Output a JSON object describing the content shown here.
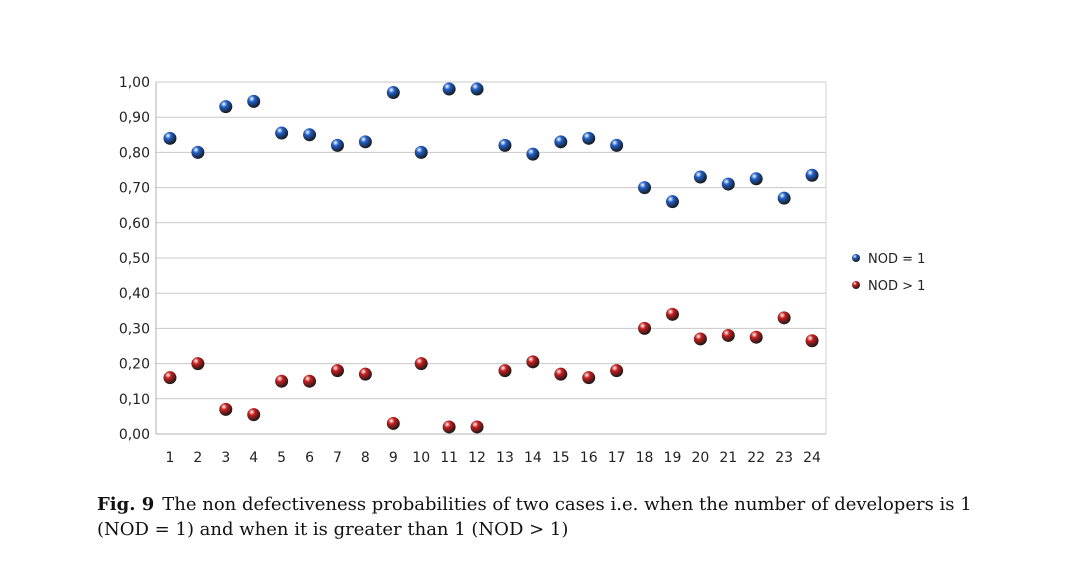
{
  "chart_data": {
    "type": "scatter",
    "categories": [
      "1",
      "2",
      "3",
      "4",
      "5",
      "6",
      "7",
      "8",
      "9",
      "10",
      "11",
      "12",
      "13",
      "14",
      "15",
      "16",
      "17",
      "18",
      "19",
      "20",
      "21",
      "22",
      "23",
      "24"
    ],
    "series": [
      {
        "name": "NOD = 1",
        "color": "#1f5fc8",
        "values": [
          0.84,
          0.8,
          0.93,
          0.945,
          0.855,
          0.85,
          0.82,
          0.83,
          0.97,
          0.8,
          0.98,
          0.98,
          0.82,
          0.795,
          0.83,
          0.84,
          0.82,
          0.7,
          0.66,
          0.73,
          0.71,
          0.725,
          0.67,
          0.735
        ]
      },
      {
        "name": "NOD > 1",
        "color": "#c81e1e",
        "values": [
          0.16,
          0.2,
          0.07,
          0.055,
          0.15,
          0.15,
          0.18,
          0.17,
          0.03,
          0.2,
          0.02,
          0.02,
          0.18,
          0.205,
          0.17,
          0.16,
          0.18,
          0.3,
          0.34,
          0.27,
          0.28,
          0.275,
          0.33,
          0.265
        ]
      }
    ],
    "y_ticks": [
      "0,00",
      "0,10",
      "0,20",
      "0,30",
      "0,40",
      "0,50",
      "0,60",
      "0,70",
      "0,80",
      "0,90",
      "1,00"
    ],
    "ylim": [
      0,
      1
    ],
    "grid": true,
    "legend_position": "right",
    "title": "",
    "xlabel": "",
    "ylabel": ""
  },
  "caption": {
    "label": "Fig. 9",
    "text": "The non defectiveness probabilities of two cases i.e. when the number of developers is 1 (NOD = 1) and when it is greater than 1 (NOD > 1)"
  }
}
